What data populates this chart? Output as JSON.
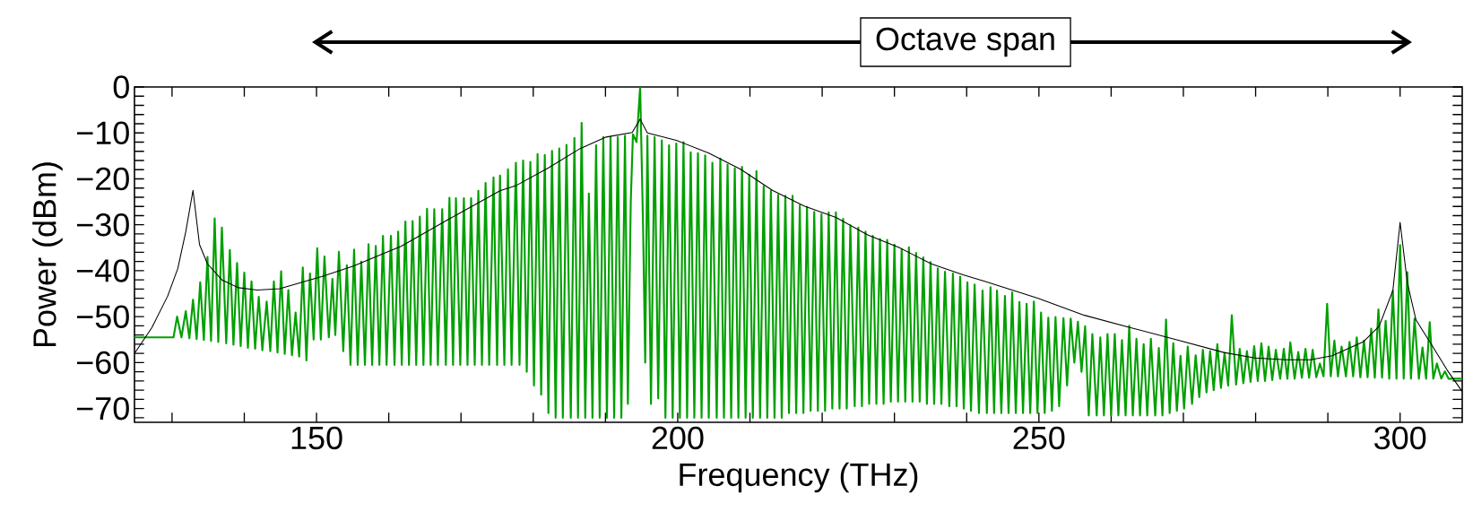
{
  "chart_data": {
    "type": "line",
    "xlabel": "Frequency (THz)",
    "ylabel": "Power (dBm)",
    "annotations": [
      "Octave span"
    ],
    "xlim": [
      124.8,
      308.6
    ],
    "ylim": [
      -73,
      0
    ],
    "xticks": [
      {
        "value": 130,
        "label": null
      },
      {
        "value": 140,
        "label": null
      },
      150,
      {
        "value": 160,
        "label": null
      },
      {
        "value": 170,
        "label": null
      },
      {
        "value": 180,
        "label": null
      },
      {
        "value": 190,
        "label": null
      },
      200,
      {
        "value": 210,
        "label": null
      },
      {
        "value": 220,
        "label": null
      },
      {
        "value": 230,
        "label": null
      },
      {
        "value": 240,
        "label": null
      },
      250,
      {
        "value": 260,
        "label": null
      },
      {
        "value": 270,
        "label": null
      },
      {
        "value": 280,
        "label": null
      },
      {
        "value": 290,
        "label": null
      },
      300
    ],
    "yticks": [
      0,
      {
        "value": -2,
        "label": null
      },
      {
        "value": -4,
        "label": null
      },
      {
        "value": -6,
        "label": null
      },
      {
        "value": -8,
        "label": null
      },
      {
        "value": -10,
        "label": "−10"
      },
      {
        "value": -12,
        "label": null
      },
      {
        "value": -14,
        "label": null
      },
      {
        "value": -16,
        "label": null
      },
      {
        "value": -18,
        "label": null
      },
      {
        "value": -20,
        "label": "−20"
      },
      {
        "value": -22,
        "label": null
      },
      {
        "value": -24,
        "label": null
      },
      {
        "value": -26,
        "label": null
      },
      {
        "value": -28,
        "label": null
      },
      {
        "value": -30,
        "label": "−30"
      },
      {
        "value": -32,
        "label": null
      },
      {
        "value": -34,
        "label": null
      },
      {
        "value": -36,
        "label": null
      },
      {
        "value": -38,
        "label": null
      },
      {
        "value": -40,
        "label": "−40"
      },
      {
        "value": -42,
        "label": null
      },
      {
        "value": -44,
        "label": null
      },
      {
        "value": -46,
        "label": null
      },
      {
        "value": -48,
        "label": null
      },
      {
        "value": -50,
        "label": "−50"
      },
      {
        "value": -52,
        "label": null
      },
      {
        "value": -54,
        "label": null
      },
      {
        "value": -56,
        "label": null
      },
      {
        "value": -58,
        "label": null
      },
      {
        "value": -60,
        "label": "−60"
      },
      {
        "value": -62,
        "label": null
      },
      {
        "value": -64,
        "label": null
      },
      {
        "value": -66,
        "label": null
      },
      {
        "value": -68,
        "label": null
      },
      {
        "value": -70,
        "label": "−70"
      },
      {
        "value": -72,
        "label": null
      }
    ],
    "series": [
      {
        "color": "#00a000",
        "x": [
          124.8,
          130.2,
          130.7,
          131.3,
          131.9,
          132.4,
          132.9,
          133.4,
          133.9,
          134.4,
          134.9,
          135.4,
          135.9,
          136.4,
          136.9,
          137.5,
          138.0,
          138.5,
          139.0,
          139.5,
          140.0,
          140.5,
          141.0,
          141.5,
          142.0,
          142.5,
          143.1,
          143.6,
          144.1,
          144.6,
          145.1,
          145.6,
          146.1,
          146.6,
          147.1,
          147.6,
          148.1,
          148.6,
          149.1,
          149.6,
          150.1,
          150.6,
          151.1,
          151.7,
          152.2,
          152.6,
          153.1,
          153.7,
          154.2,
          154.7,
          155.2,
          155.7,
          156.2,
          156.7,
          157.2,
          157.7,
          158.2,
          158.7,
          159.2,
          159.7,
          160.3,
          160.8,
          161.3,
          161.8,
          162.3,
          162.8,
          163.3,
          163.8,
          164.3,
          164.8,
          165.3,
          165.8,
          166.3,
          166.8,
          167.4,
          167.9,
          168.4,
          168.9,
          169.3,
          169.9,
          170.4,
          170.9,
          171.4,
          171.9,
          172.4,
          172.9,
          173.4,
          173.9,
          174.5,
          175.0,
          175.4,
          176.0,
          176.5,
          177.0,
          177.6,
          178.1,
          178.6,
          179.1,
          179.6,
          180.1,
          180.6,
          181.1,
          181.6,
          182.1,
          182.6,
          183.1,
          183.6,
          184.1,
          184.6,
          185.2,
          185.7,
          186.2,
          186.7,
          187.2,
          187.7,
          188.2,
          188.7,
          189.2,
          189.7,
          190.2,
          190.7,
          191.2,
          191.7,
          192.2,
          192.7,
          193.1,
          193.5,
          193.8,
          194.3,
          194.8,
          195.2,
          195.5,
          195.8,
          196.3,
          196.8,
          197.3,
          197.8,
          198.3,
          198.8,
          199.3,
          199.8,
          200.3,
          200.8,
          201.3,
          201.8,
          202.3,
          202.8,
          203.3,
          203.8,
          204.3,
          204.8,
          205.4,
          205.9,
          206.4,
          206.9,
          207.4,
          207.9,
          208.4,
          208.9,
          209.4,
          209.9,
          210.4,
          210.9,
          211.4,
          211.9,
          212.4,
          212.9,
          213.4,
          213.9,
          214.4,
          214.9,
          215.4,
          215.9,
          216.4,
          216.9,
          217.4,
          217.9,
          218.4,
          218.9,
          219.4,
          219.9,
          220.4,
          220.9,
          221.4,
          221.9,
          222.4,
          222.9,
          223.4,
          223.9,
          224.5,
          225.0,
          225.5,
          226.0,
          226.5,
          227.0,
          227.5,
          228.0,
          228.5,
          229.0,
          229.5,
          230.0,
          230.5,
          231.0,
          231.5,
          232.0,
          232.5,
          233.0,
          233.5,
          234.0,
          234.5,
          235.0,
          235.5,
          236.0,
          236.5,
          237.0,
          237.6,
          238.1,
          238.6,
          239.1,
          239.6,
          240.1,
          240.6,
          241.1,
          241.7,
          242.2,
          242.8,
          243.3,
          243.8,
          244.2,
          244.8,
          245.3,
          245.8,
          246.3,
          246.8,
          247.3,
          247.8,
          248.3,
          248.8,
          249.3,
          249.8,
          250.3,
          250.8,
          251.3,
          251.8,
          252.3,
          252.8,
          253.4,
          253.9,
          254.4,
          254.9,
          255.4,
          255.9,
          256.4,
          256.9,
          257.4,
          258.0,
          258.5,
          259.0,
          259.5,
          260.0,
          260.5,
          261.0,
          261.5,
          262.0,
          262.5,
          263.0,
          263.5,
          264.0,
          264.5,
          265.0,
          265.5,
          266.1,
          266.6,
          267.1,
          267.6,
          268.1,
          268.6,
          269.1,
          269.6,
          270.1,
          270.6,
          271.2,
          271.7,
          272.2,
          272.7,
          273.2,
          273.7,
          274.2,
          274.7,
          275.2,
          275.7,
          276.2,
          276.7,
          277.3,
          277.8,
          278.3,
          278.8,
          279.3,
          279.8,
          280.3,
          280.8,
          281.3,
          281.8,
          282.3,
          282.8,
          283.4,
          283.9,
          284.4,
          284.8,
          285.4,
          285.9,
          286.4,
          286.9,
          287.4,
          287.9,
          288.4,
          288.9,
          289.4,
          289.9,
          290.4,
          290.9,
          291.4,
          291.9,
          292.5,
          293.0,
          293.5,
          294.0,
          294.5,
          295.0,
          295.5,
          296.0,
          296.5,
          297.0,
          297.5,
          298.0,
          298.5,
          299.0,
          299.5,
          300.0,
          300.5,
          301.0,
          301.5,
          302.0,
          302.6,
          303.1,
          303.6,
          304.1,
          304.6,
          305.1,
          305.7,
          306.2,
          306.7,
          308.6
        ],
        "values": [
          -54.5,
          -54.5,
          -50.0,
          -54.5,
          -48.8,
          -54.7,
          -46.3,
          -54.9,
          -42.5,
          -55.1,
          -37.0,
          -55.3,
          -28.6,
          -55.5,
          -30.6,
          -55.8,
          -35.5,
          -56.1,
          -38.3,
          -56.4,
          -40.4,
          -56.8,
          -42.3,
          -57.0,
          -45.7,
          -57.3,
          -46.7,
          -57.5,
          -42.3,
          -57.8,
          -40.1,
          -58.1,
          -44.2,
          -58.4,
          -49.1,
          -58.7,
          -39.3,
          -59.5,
          -40.6,
          -55.0,
          -35.1,
          -55.0,
          -36.9,
          -54.5,
          -41.8,
          -54.0,
          -35.9,
          -57.5,
          -38.8,
          -60.5,
          -35.4,
          -60.5,
          -38.0,
          -60.5,
          -34.2,
          -60.5,
          -34.6,
          -60.5,
          -32.4,
          -60.5,
          -32.4,
          -60.5,
          -31.5,
          -60.5,
          -29.3,
          -60.5,
          -29.2,
          -60.5,
          -28.2,
          -60.5,
          -26.5,
          -60.5,
          -26.6,
          -60.5,
          -26.6,
          -60.5,
          -24.1,
          -60.5,
          -24.2,
          -60.5,
          -24.2,
          -60.5,
          -24.2,
          -60.5,
          -22.6,
          -60.5,
          -20.9,
          -60.5,
          -19.7,
          -60.5,
          -19.3,
          -60.5,
          -17.9,
          -60.5,
          -16.5,
          -60.5,
          -16.0,
          -62.0,
          -16.3,
          -65.0,
          -14.6,
          -67.0,
          -14.8,
          -71.0,
          -13.9,
          -72.0,
          -13.4,
          -72.0,
          -12.6,
          -72.0,
          -11.1,
          -72.0,
          -7.8,
          -72.0,
          -23.2,
          -72.0,
          -12.7,
          -72.0,
          -10.9,
          -72.0,
          -10.9,
          -72.0,
          -10.9,
          -72.0,
          -10.6,
          -69.0,
          -25.0,
          -10.3,
          -12.0,
          0.0,
          -30.0,
          -60.0,
          -10.6,
          -69.0,
          -10.9,
          -67.8,
          -11.6,
          -72.0,
          -12.7,
          -72.0,
          -12.3,
          -72.0,
          -12.0,
          -72.0,
          -14.2,
          -72.0,
          -14.4,
          -72.0,
          -14.9,
          -72.0,
          -16.5,
          -72.0,
          -15.6,
          -72.0,
          -16.9,
          -72.0,
          -17.7,
          -72.0,
          -17.4,
          -72.0,
          -19.1,
          -72.0,
          -18.3,
          -72.0,
          -21.6,
          -72.0,
          -22.6,
          -72.0,
          -23.5,
          -72.0,
          -23.7,
          -71.0,
          -23.7,
          -71.0,
          -25.8,
          -71.0,
          -26.1,
          -70.5,
          -27.2,
          -70.5,
          -27.7,
          -70.5,
          -27.3,
          -70.0,
          -27.3,
          -70.0,
          -28.7,
          -70.0,
          -30.1,
          -69.5,
          -30.6,
          -69.5,
          -31.5,
          -69.0,
          -32.4,
          -69.0,
          -33.1,
          -69.0,
          -33.3,
          -68.5,
          -34.3,
          -68.5,
          -35.4,
          -68.5,
          -34.9,
          -68.5,
          -36.1,
          -68.5,
          -37.1,
          -69.0,
          -38.1,
          -69.0,
          -39.5,
          -69.0,
          -40.2,
          -69.5,
          -40.6,
          -69.5,
          -41.3,
          -70.0,
          -42.5,
          -70.5,
          -43.0,
          -71.0,
          -44.3,
          -71.0,
          -43.6,
          -71.0,
          -44.3,
          -71.0,
          -45.5,
          -71.0,
          -44.7,
          -71.0,
          -46.8,
          -71.0,
          -47.2,
          -71.0,
          -46.7,
          -71.0,
          -49.1,
          -71.0,
          -50.2,
          -70.5,
          -50.1,
          -69.5,
          -50.3,
          -65.0,
          -50.4,
          -60.0,
          -51.1,
          -62.0,
          -52.1,
          -71.5,
          -53.8,
          -71.5,
          -54.5,
          -71.5,
          -53.8,
          -71.5,
          -53.8,
          -71.5,
          -55.1,
          -71.5,
          -52.0,
          -71.5,
          -54.8,
          -71.5,
          -56.0,
          -71.5,
          -54.8,
          -71.5,
          -56.8,
          -71.5,
          -50.6,
          -71.0,
          -55.8,
          -70.5,
          -58.5,
          -70.0,
          -56.5,
          -69.0,
          -58.4,
          -67.5,
          -57.2,
          -66.5,
          -57.5,
          -66.0,
          -56.0,
          -65.5,
          -57.9,
          -65.0,
          -49.7,
          -64.8,
          -57.0,
          -64.5,
          -57.5,
          -64.2,
          -56.4,
          -64.0,
          -55.8,
          -64.0,
          -56.5,
          -63.8,
          -57.2,
          -63.5,
          -57.0,
          -63.5,
          -55.6,
          -63.5,
          -57.7,
          -63.3,
          -57.0,
          -63.3,
          -57.2,
          -63.2,
          -60.2,
          -63.0,
          -47.2,
          -63.0,
          -55.2,
          -63.0,
          -56.5,
          -63.0,
          -55.5,
          -63.0,
          -54.5,
          -63.2,
          -55.2,
          -63.2,
          -52.6,
          -63.3,
          -48.4,
          -63.3,
          -50.9,
          -63.5,
          -44.3,
          -63.5,
          -34.4,
          -63.5,
          -40.3,
          -63.5,
          -50.4,
          -63.5,
          -56.7,
          -63.5,
          -51.2,
          -63.5,
          -60.2,
          -63.5,
          -61.9,
          -63.5,
          -63.5
        ]
      },
      {
        "color": "#000000",
        "x": [
          124.8,
          127.2,
          129.4,
          130.8,
          131.9,
          132.9,
          133.8,
          134.9,
          136.9,
          139.2,
          141.8,
          144.9,
          148.0,
          150.7,
          155.1,
          159.5,
          161.7,
          168.4,
          175.4,
          177.7,
          182.1,
          186.5,
          190.1,
          193.7,
          194.8,
          195.8,
          199.8,
          204.3,
          208.7,
          213.1,
          217.5,
          221.9,
          226.3,
          230.7,
          235.1,
          239.5,
          242.5,
          249.9,
          256.3,
          262.7,
          269.2,
          275.6,
          279.9,
          284.2,
          287.6,
          290.6,
          294.9,
          297.1,
          299.0,
          300.0,
          301.0,
          302.2,
          304.4,
          306.5,
          308.6
        ],
        "values": [
          -58.0,
          -52.4,
          -45.5,
          -39.5,
          -31.5,
          -22.5,
          -34.3,
          -38.5,
          -42.0,
          -43.7,
          -44.2,
          -43.9,
          -42.5,
          -41.3,
          -39.0,
          -36.1,
          -34.7,
          -28.7,
          -22.6,
          -21.4,
          -17.6,
          -13.4,
          -10.9,
          -9.9,
          -7.0,
          -10.0,
          -11.6,
          -14.4,
          -17.9,
          -22.5,
          -25.9,
          -28.4,
          -32.2,
          -35.0,
          -38.5,
          -40.9,
          -42.3,
          -46.0,
          -49.7,
          -52.4,
          -55.1,
          -57.8,
          -59.0,
          -59.4,
          -59.4,
          -58.5,
          -55.5,
          -52.1,
          -44.3,
          -29.5,
          -42.6,
          -50.7,
          -56.2,
          -61.6,
          -66.3
        ]
      }
    ]
  }
}
